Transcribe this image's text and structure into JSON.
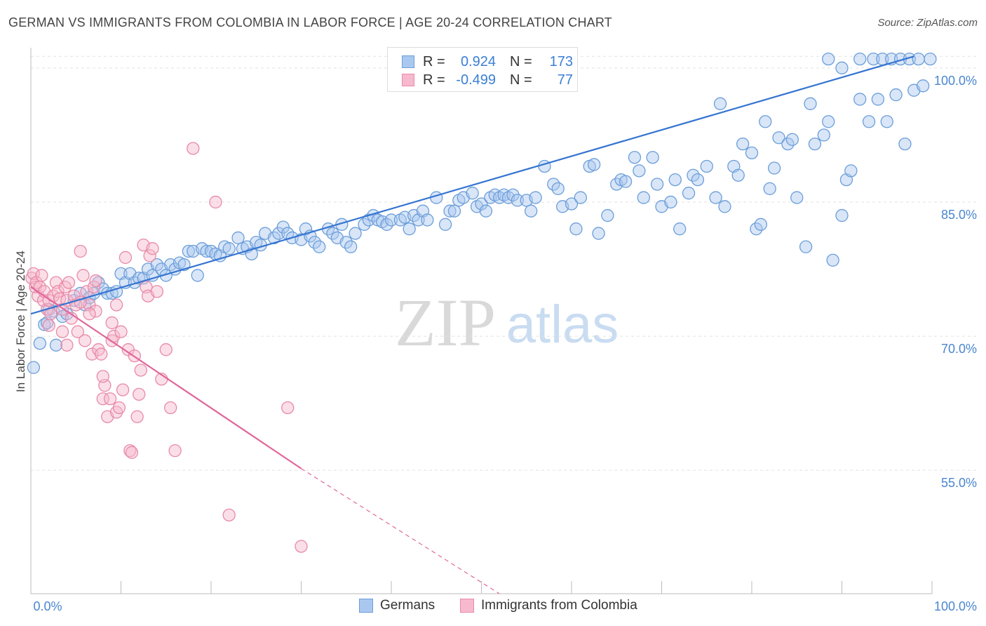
{
  "title": "GERMAN VS IMMIGRANTS FROM COLOMBIA IN LABOR FORCE | AGE 20-24 CORRELATION CHART",
  "source": "Source: ZipAtlas.com",
  "watermark": {
    "zip": "ZIP",
    "atlas": "atlas"
  },
  "legend": {
    "r_label": "R =",
    "n_label": "N =",
    "rows": [
      {
        "name": "Germans",
        "r": "0.924",
        "n": "173",
        "fill": "#aac8ef",
        "stroke": "#6b9ed9"
      },
      {
        "name": "Immigrants from Colombia",
        "r": "-0.499",
        "n": "77",
        "fill": "#f7b9cd",
        "stroke": "#e88aa8"
      }
    ]
  },
  "colors": {
    "blue_line": "#3474d1",
    "pink_line": "#e0679a",
    "tick_text": "#4a86d0",
    "grid": "#e2e2e2"
  },
  "chart_data": {
    "type": "scatter",
    "xlabel": "",
    "ylabel": "In Labor Force | Age 20-24",
    "x_tick_labels": [
      "0.0%",
      "100.0%"
    ],
    "y_tick_labels": [
      "55.0%",
      "70.0%",
      "85.0%",
      "100.0%"
    ],
    "y_ticks": [
      55,
      70,
      85,
      100
    ],
    "xlim": [
      0,
      100
    ],
    "ylim": [
      41.2,
      101.4
    ],
    "grid": true,
    "series": [
      {
        "name": "Germans",
        "trend": {
          "x1": 0,
          "y1": 72.5,
          "x2": 98,
          "y2": 101.3,
          "dashed_to": null
        },
        "points": [
          [
            0.3,
            66.5
          ],
          [
            1,
            69.2
          ],
          [
            1.5,
            71.3
          ],
          [
            1.8,
            71.5
          ],
          [
            2,
            73
          ],
          [
            2.5,
            72.8
          ],
          [
            2.8,
            69
          ],
          [
            3.5,
            72.2
          ],
          [
            4,
            72.5
          ],
          [
            4.8,
            74
          ],
          [
            5.5,
            74.8
          ],
          [
            6,
            73.5
          ],
          [
            6.5,
            74.3
          ],
          [
            7,
            74.8
          ],
          [
            7.5,
            76
          ],
          [
            8,
            75.3
          ],
          [
            8.5,
            74.8
          ],
          [
            9,
            74.8
          ],
          [
            9.5,
            75
          ],
          [
            10,
            77
          ],
          [
            10.5,
            76
          ],
          [
            11,
            77
          ],
          [
            11.5,
            76
          ],
          [
            12,
            76.5
          ],
          [
            12.5,
            76.5
          ],
          [
            13,
            77.5
          ],
          [
            13.5,
            76.8
          ],
          [
            14,
            78
          ],
          [
            14.5,
            77.5
          ],
          [
            15,
            76.8
          ],
          [
            15.5,
            78
          ],
          [
            16,
            77.5
          ],
          [
            16.5,
            78.2
          ],
          [
            17,
            78
          ],
          [
            17.5,
            79.5
          ],
          [
            18,
            79.5
          ],
          [
            18.5,
            76.8
          ],
          [
            19,
            79.8
          ],
          [
            19.5,
            79.5
          ],
          [
            20,
            79.5
          ],
          [
            20.5,
            79.2
          ],
          [
            21,
            79
          ],
          [
            21.5,
            80
          ],
          [
            22,
            79.8
          ],
          [
            23,
            81
          ],
          [
            23.5,
            79.8
          ],
          [
            24,
            80
          ],
          [
            24.5,
            79.2
          ],
          [
            25,
            80.5
          ],
          [
            25.5,
            80.2
          ],
          [
            26,
            81.5
          ],
          [
            27,
            81
          ],
          [
            27.5,
            81.5
          ],
          [
            28,
            82.2
          ],
          [
            28.5,
            81.5
          ],
          [
            29,
            81
          ],
          [
            30,
            80.8
          ],
          [
            30.5,
            82
          ],
          [
            31,
            81.2
          ],
          [
            31.5,
            80.5
          ],
          [
            32,
            80
          ],
          [
            33,
            82
          ],
          [
            33.5,
            81.5
          ],
          [
            34,
            81
          ],
          [
            34.5,
            82.5
          ],
          [
            35,
            80.5
          ],
          [
            35.5,
            80
          ],
          [
            36,
            81.5
          ],
          [
            37,
            82.5
          ],
          [
            37.5,
            83
          ],
          [
            38,
            83.5
          ],
          [
            38.5,
            83
          ],
          [
            39,
            82.8
          ],
          [
            39.5,
            82.5
          ],
          [
            40,
            83
          ],
          [
            41,
            83
          ],
          [
            41.5,
            83.3
          ],
          [
            42,
            82
          ],
          [
            42.5,
            83.5
          ],
          [
            43,
            83
          ],
          [
            43.5,
            84
          ],
          [
            44,
            83
          ],
          [
            45,
            85.5
          ],
          [
            46,
            82.5
          ],
          [
            46.5,
            84
          ],
          [
            47,
            84
          ],
          [
            47.5,
            85.2
          ],
          [
            48,
            85.5
          ],
          [
            49,
            86
          ],
          [
            49.5,
            84.5
          ],
          [
            50,
            84.8
          ],
          [
            50.5,
            84
          ],
          [
            51,
            85.5
          ],
          [
            51.5,
            85.8
          ],
          [
            52,
            85.5
          ],
          [
            52.5,
            85.8
          ],
          [
            53,
            85.5
          ],
          [
            53.5,
            85.8
          ],
          [
            54,
            85.2
          ],
          [
            55,
            85.2
          ],
          [
            55.5,
            84
          ],
          [
            56,
            85.5
          ],
          [
            57,
            89
          ],
          [
            58,
            87
          ],
          [
            58.5,
            86.5
          ],
          [
            59,
            84.5
          ],
          [
            60,
            84.8
          ],
          [
            60.5,
            82
          ],
          [
            61,
            85.5
          ],
          [
            62,
            89
          ],
          [
            62.5,
            89.2
          ],
          [
            63,
            81.5
          ],
          [
            64,
            83.5
          ],
          [
            65,
            87
          ],
          [
            65.5,
            87.5
          ],
          [
            66,
            87.3
          ],
          [
            67,
            90
          ],
          [
            67.5,
            88.5
          ],
          [
            68,
            85.5
          ],
          [
            69,
            90
          ],
          [
            69.5,
            87
          ],
          [
            70,
            84.5
          ],
          [
            71,
            85
          ],
          [
            71.5,
            87.5
          ],
          [
            72,
            82
          ],
          [
            73,
            86
          ],
          [
            73.5,
            88
          ],
          [
            74,
            87.5
          ],
          [
            75,
            89
          ],
          [
            76,
            85.5
          ],
          [
            76.5,
            96
          ],
          [
            77,
            84.5
          ],
          [
            78,
            89
          ],
          [
            78.5,
            88
          ],
          [
            79,
            91.5
          ],
          [
            80,
            90.5
          ],
          [
            80.5,
            82
          ],
          [
            81,
            82.5
          ],
          [
            81.5,
            94
          ],
          [
            82,
            86.5
          ],
          [
            82.5,
            88.8
          ],
          [
            83,
            92.2
          ],
          [
            84,
            91.5
          ],
          [
            84.5,
            92
          ],
          [
            85,
            85.5
          ],
          [
            86,
            80
          ],
          [
            86.5,
            96
          ],
          [
            87,
            91.5
          ],
          [
            88,
            92.5
          ],
          [
            88.5,
            94
          ],
          [
            89,
            78.5
          ],
          [
            90,
            83.5
          ],
          [
            90.5,
            87.5
          ],
          [
            91,
            88.5
          ],
          [
            92,
            96.5
          ],
          [
            93,
            94
          ],
          [
            94,
            96.5
          ],
          [
            95,
            94
          ],
          [
            96,
            97
          ],
          [
            97,
            91.5
          ],
          [
            98,
            97.5
          ],
          [
            99,
            98
          ],
          [
            99.8,
            101
          ],
          [
            88.5,
            101
          ],
          [
            90,
            100
          ],
          [
            92,
            101
          ],
          [
            93.5,
            101
          ],
          [
            94.5,
            101
          ],
          [
            95.5,
            101
          ],
          [
            96.5,
            101
          ],
          [
            97.5,
            101
          ],
          [
            98.5,
            101
          ]
        ]
      },
      {
        "name": "Immigrants from Colombia",
        "trend": {
          "x1": 0,
          "y1": 75.5,
          "x2": 30,
          "y2": 55.2,
          "dashed_to": {
            "x": 52,
            "y": 41.2
          }
        },
        "points": [
          [
            0.1,
            76.5
          ],
          [
            0.3,
            77
          ],
          [
            0.5,
            75.5
          ],
          [
            0.6,
            76
          ],
          [
            0.8,
            74.5
          ],
          [
            1,
            75.5
          ],
          [
            1.2,
            76.8
          ],
          [
            1.4,
            74
          ],
          [
            1.5,
            75
          ],
          [
            1.8,
            73
          ],
          [
            2,
            74
          ],
          [
            2.2,
            72.5
          ],
          [
            2.5,
            74.5
          ],
          [
            2.8,
            76
          ],
          [
            3,
            75
          ],
          [
            3.2,
            74.2
          ],
          [
            3.5,
            73
          ],
          [
            3.8,
            75.5
          ],
          [
            4,
            74
          ],
          [
            4.2,
            76
          ],
          [
            4.5,
            72
          ],
          [
            4.8,
            74.5
          ],
          [
            5,
            73.5
          ],
          [
            5.2,
            70.5
          ],
          [
            5.5,
            79.5
          ],
          [
            5.8,
            76.8
          ],
          [
            6,
            69.5
          ],
          [
            6.2,
            75
          ],
          [
            6.5,
            73.5
          ],
          [
            6.8,
            68
          ],
          [
            7,
            75.5
          ],
          [
            7.2,
            72.8
          ],
          [
            7.5,
            68.5
          ],
          [
            7.8,
            68
          ],
          [
            8,
            63
          ],
          [
            8.2,
            64.5
          ],
          [
            8.5,
            61
          ],
          [
            8.8,
            63
          ],
          [
            9,
            69.5
          ],
          [
            9.2,
            70
          ],
          [
            9.5,
            61.5
          ],
          [
            9.8,
            62
          ],
          [
            10,
            70.5
          ],
          [
            10.2,
            64
          ],
          [
            10.5,
            78.8
          ],
          [
            10.8,
            68.5
          ],
          [
            11,
            57.2
          ],
          [
            11.2,
            57
          ],
          [
            11.5,
            67.8
          ],
          [
            11.8,
            61
          ],
          [
            12,
            63.5
          ],
          [
            12.2,
            66.2
          ],
          [
            12.5,
            80.2
          ],
          [
            12.8,
            75.5
          ],
          [
            13,
            74.5
          ],
          [
            13.2,
            79
          ],
          [
            13.5,
            79.8
          ],
          [
            14,
            75
          ],
          [
            14.5,
            65.2
          ],
          [
            15,
            68.5
          ],
          [
            15.5,
            62
          ],
          [
            16,
            57.2
          ],
          [
            18,
            91
          ],
          [
            20.5,
            85
          ],
          [
            22,
            50
          ],
          [
            28.5,
            62
          ],
          [
            30,
            46.5
          ],
          [
            6.5,
            72.5
          ],
          [
            7.2,
            76.2
          ],
          [
            9,
            71.5
          ],
          [
            9.5,
            73.5
          ],
          [
            2,
            71.2
          ],
          [
            3.5,
            70.5
          ],
          [
            4,
            69
          ],
          [
            5.5,
            73.8
          ],
          [
            8,
            65.5
          ]
        ]
      }
    ]
  }
}
